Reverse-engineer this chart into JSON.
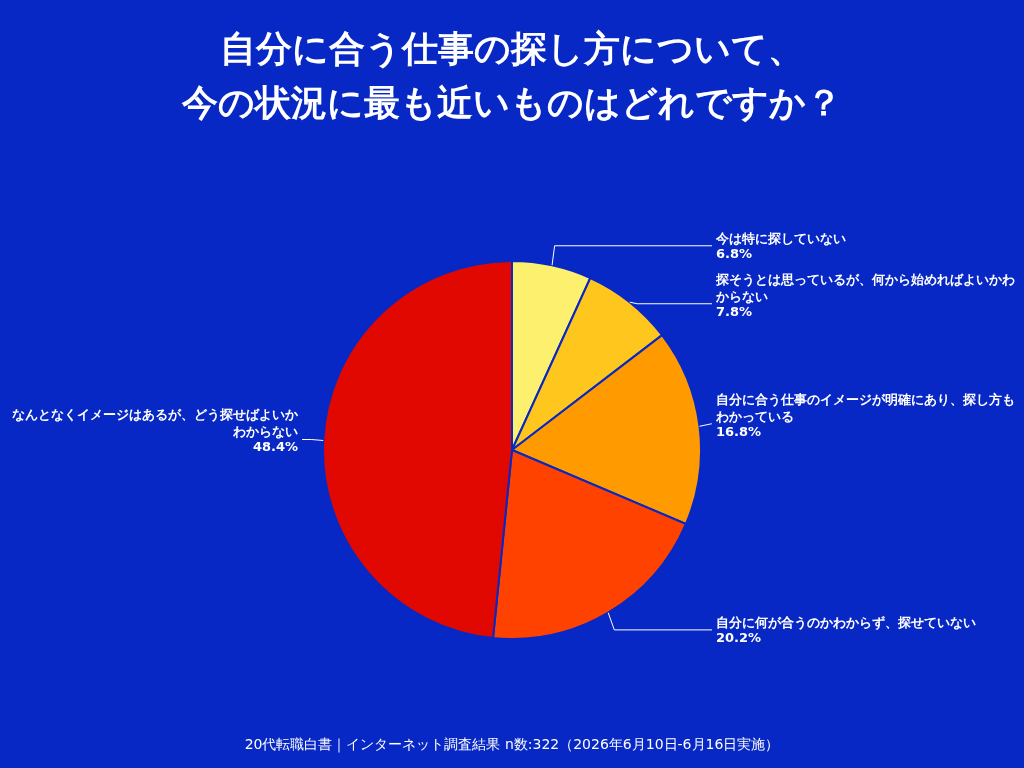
{
  "chart_data": {
    "type": "pie",
    "title": "自分に合う仕事の探し方について、今の状況に最も近いものはどれですか？",
    "categories": [
      "今は特に探していない",
      "探そうとは思っているが、何から始めればよいかわからない",
      "自分に合う仕事のイメージが明確にあり、探し方もわかっている",
      "自分に何が合うのかわからず、探せていない",
      "なんとなくイメージはあるが、どう探せばよいかわからない"
    ],
    "values": [
      6.8,
      7.8,
      16.8,
      20.2,
      48.4
    ],
    "colors": [
      "#fdf06e",
      "#ffc61e",
      "#ff9b00",
      "#ff4200",
      "#e00800"
    ],
    "value_labels": [
      "6.8%",
      "7.8%",
      "16.8%",
      "20.2%",
      "48.4%"
    ],
    "legend": false,
    "annotations": [
      "20代転職白書｜インターネット調査結果 n数:322（2026年6月10日-6月16日実施）"
    ]
  }
}
